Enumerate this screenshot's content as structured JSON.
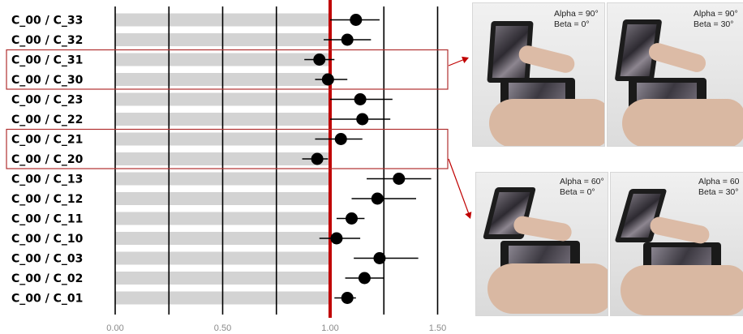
{
  "chart_data": {
    "type": "scatter",
    "title": "",
    "xlabel": "",
    "ylabel": "",
    "xlim": [
      -0.1,
      1.6
    ],
    "x_ticks": [
      "0.00",
      "0.50",
      "1.00",
      "1.50"
    ],
    "x_tick_values": [
      0,
      0.5,
      1.0,
      1.5
    ],
    "reference_line": 1.0,
    "categories": [
      "C_00 / C_33",
      "C_00 / C_32",
      "C_00 / C_31",
      "C_00 / C_30",
      "C_00 / C_23",
      "C_00 / C_22",
      "C_00 / C_21",
      "C_00 / C_20",
      "C_00 / C_13",
      "C_00 / C_12",
      "C_00 / C_11",
      "C_00 / C_10",
      "C_00 / C_03",
      "C_00 / C_02",
      "C_00 / C_01"
    ],
    "estimates": [
      1.12,
      1.08,
      0.95,
      0.99,
      1.14,
      1.15,
      1.05,
      0.94,
      1.32,
      1.22,
      1.1,
      1.03,
      1.23,
      1.16,
      1.08
    ],
    "ci_low": [
      1.0,
      0.97,
      0.88,
      0.93,
      1.0,
      1.0,
      0.93,
      0.87,
      1.17,
      1.1,
      1.03,
      0.95,
      1.11,
      1.07,
      1.02
    ],
    "ci_high": [
      1.23,
      1.19,
      1.02,
      1.08,
      1.29,
      1.28,
      1.15,
      0.99,
      1.47,
      1.4,
      1.16,
      1.14,
      1.41,
      1.25,
      1.12
    ],
    "highlighted_groups": [
      [
        "C_00 / C_31",
        "C_00 / C_30"
      ],
      [
        "C_00 / C_21",
        "C_00 / C_20"
      ]
    ],
    "grid": true,
    "colors": {
      "reference": "#c00000",
      "point": "#000000",
      "band": "#d3d3d3",
      "highlight": "#b03030"
    }
  },
  "photos": [
    {
      "alpha": "Alpha = 90°",
      "beta": "Beta = 0°"
    },
    {
      "alpha": "Alpha = 90°",
      "beta": "Beta = 30°"
    },
    {
      "alpha": "Alpha = 60°",
      "beta": "Beta = 0°"
    },
    {
      "alpha": "Alpha = 60",
      "beta": "Beta = 30°"
    }
  ]
}
